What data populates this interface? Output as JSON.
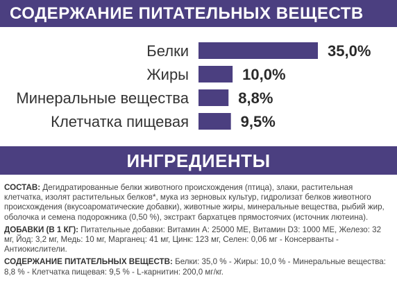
{
  "header": {
    "nutrients_title": "СОДЕРЖАНИЕ ПИТАТЕЛЬНЫХ ВЕЩЕСТВ"
  },
  "ingredients_header": {
    "title": "ИНГРЕДИЕНТЫ"
  },
  "chart_data": {
    "type": "bar",
    "orientation": "horizontal",
    "categories": [
      "Белки",
      "Жиры",
      "Минеральные вещества",
      "Клетчатка пищевая"
    ],
    "values": [
      35.0,
      10.0,
      8.8,
      9.5
    ],
    "value_labels": [
      "35,0%",
      "10,0%",
      "8,8%",
      "9,5%"
    ],
    "unit": "%",
    "bar_color": "#4b3f80",
    "grid": false,
    "xlim": [
      0,
      35
    ]
  },
  "composition": {
    "label": "СОСТАВ:",
    "text": "Дегидратированные белки животного происхождения (птица), злаки, растительная клетчатка, изолят растительных белков*, мука из зерновых культур, гидролизат белков животного происхождения (вкусоароматические добавки), животные жиры, минеральные вещества, рыбий жир, оболочка и семена подорожника (0,50 %), экстракт бархатцев прямостоячих (источник лютеина)."
  },
  "additives": {
    "label": "ДОБАВКИ (В 1 КГ):",
    "text": "Питательные добавки: Витамин A: 25000 МЕ, Витамин D3: 1000 МЕ, Железо: 32 мг, Йод: 3,2 мг, Медь: 10 мг, Марганец: 41 мг, Цинк: 123 мг, Селен: 0,06 мг - Консерванты - Антиокислители."
  },
  "nutrient_content": {
    "label": "СОДЕРЖАНИЕ ПИТАТЕЛЬНЫХ ВЕЩЕСТВ:",
    "text": "Белки: 35,0 % - Жиры: 10,0 % - Минеральные вещества: 8,8 % - Клетчатка пищевая: 9,5 % - L-карнитин: 200,0 мг/кг."
  }
}
